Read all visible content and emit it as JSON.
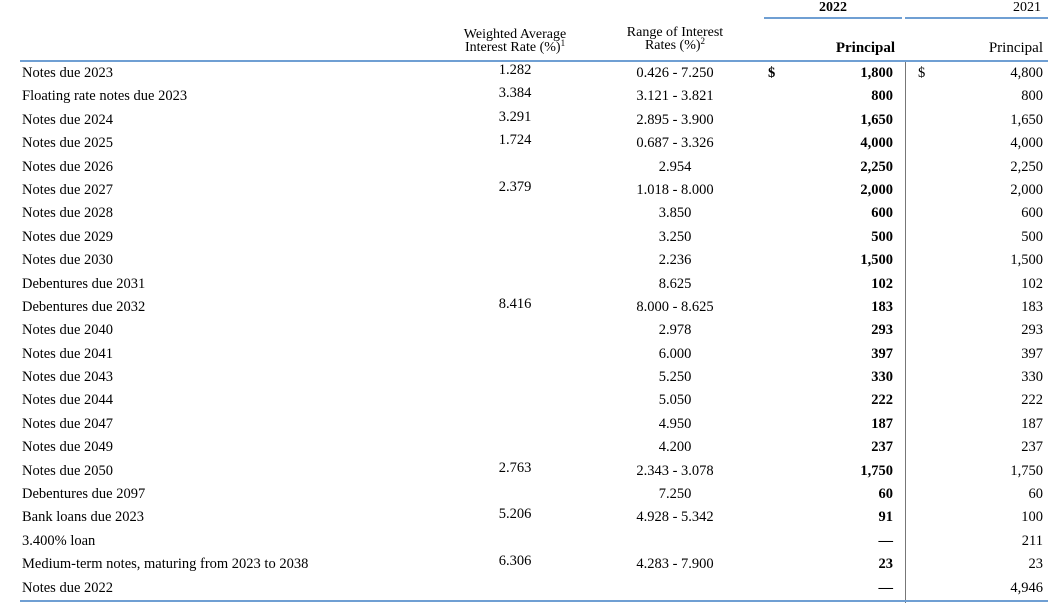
{
  "header": {
    "year_current": "2022",
    "year_prior": "2021",
    "col_weighted_avg_line1": "Weighted Average",
    "col_weighted_avg_line2": "Interest Rate (%)",
    "col_weighted_avg_sup": "1",
    "col_range_line1": "Range of Interest",
    "col_range_line2": "Rates (%)",
    "col_range_sup": "2",
    "col_principal_current": "Principal",
    "col_principal_prior": "Principal"
  },
  "currency_symbol": "$",
  "accent_color": "#6f9fd3",
  "rows": [
    {
      "label": "Notes due 2023",
      "weighted_avg": "1.282",
      "range": "0.426 - 7.250",
      "principal_2022": "1,800",
      "principal_2021": "4,800",
      "show_currency": true
    },
    {
      "label": "Floating rate notes due 2023",
      "weighted_avg": "3.384",
      "range": "3.121 - 3.821",
      "principal_2022": "800",
      "principal_2021": "800"
    },
    {
      "label": "Notes due 2024",
      "weighted_avg": "3.291",
      "range": "2.895 - 3.900",
      "principal_2022": "1,650",
      "principal_2021": "1,650"
    },
    {
      "label": "Notes due 2025",
      "weighted_avg": "1.724",
      "range": "0.687 - 3.326",
      "principal_2022": "4,000",
      "principal_2021": "4,000"
    },
    {
      "label": "Notes due 2026",
      "weighted_avg": "",
      "range": "2.954",
      "principal_2022": "2,250",
      "principal_2021": "2,250"
    },
    {
      "label": "Notes due 2027",
      "weighted_avg": "2.379",
      "range": "1.018 - 8.000",
      "principal_2022": "2,000",
      "principal_2021": "2,000"
    },
    {
      "label": "Notes due 2028",
      "weighted_avg": "",
      "range": "3.850",
      "principal_2022": "600",
      "principal_2021": "600"
    },
    {
      "label": "Notes due 2029",
      "weighted_avg": "",
      "range": "3.250",
      "principal_2022": "500",
      "principal_2021": "500"
    },
    {
      "label": "Notes due 2030",
      "weighted_avg": "",
      "range": "2.236",
      "principal_2022": "1,500",
      "principal_2021": "1,500"
    },
    {
      "label": "Debentures due 2031",
      "weighted_avg": "",
      "range": "8.625",
      "principal_2022": "102",
      "principal_2021": "102"
    },
    {
      "label": "Debentures due 2032",
      "weighted_avg": "8.416",
      "range": "8.000 - 8.625",
      "principal_2022": "183",
      "principal_2021": "183"
    },
    {
      "label": "Notes due 2040",
      "weighted_avg": "",
      "range": "2.978",
      "principal_2022": "293",
      "principal_2021": "293"
    },
    {
      "label": "Notes due 2041",
      "weighted_avg": "",
      "range": "6.000",
      "principal_2022": "397",
      "principal_2021": "397"
    },
    {
      "label": "Notes due 2043",
      "weighted_avg": "",
      "range": "5.250",
      "principal_2022": "330",
      "principal_2021": "330"
    },
    {
      "label": "Notes due 2044",
      "weighted_avg": "",
      "range": "5.050",
      "principal_2022": "222",
      "principal_2021": "222"
    },
    {
      "label": "Notes due 2047",
      "weighted_avg": "",
      "range": "4.950",
      "principal_2022": "187",
      "principal_2021": "187"
    },
    {
      "label": "Notes due 2049",
      "weighted_avg": "",
      "range": "4.200",
      "principal_2022": "237",
      "principal_2021": "237"
    },
    {
      "label": "Notes due 2050",
      "weighted_avg": "2.763",
      "range": "2.343 - 3.078",
      "principal_2022": "1,750",
      "principal_2021": "1,750"
    },
    {
      "label": "Debentures due 2097",
      "weighted_avg": "",
      "range": "7.250",
      "principal_2022": "60",
      "principal_2021": "60"
    },
    {
      "label": "Bank loans due 2023",
      "weighted_avg": "5.206",
      "range": "4.928 - 5.342",
      "principal_2022": "91",
      "principal_2021": "100"
    },
    {
      "label": "3.400% loan",
      "weighted_avg": "",
      "range": "",
      "principal_2022": "—",
      "principal_2021": "211"
    },
    {
      "label": "Medium-term notes, maturing from 2023 to 2038",
      "weighted_avg": "6.306",
      "range": "4.283 - 7.900",
      "principal_2022": "23",
      "principal_2021": "23"
    },
    {
      "label": "Notes due 2022",
      "weighted_avg": "",
      "range": "",
      "principal_2022": "—",
      "principal_2021": "4,946"
    }
  ]
}
